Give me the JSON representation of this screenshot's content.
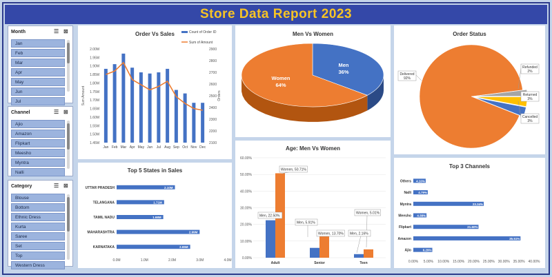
{
  "report_title": "Store Data Report 2023",
  "slicers": {
    "month": {
      "title": "Month",
      "items": [
        "Jan",
        "Feb",
        "Mar",
        "Apr",
        "May",
        "Jun",
        "Jul"
      ]
    },
    "channel": {
      "title": "Channel",
      "items": [
        "Ajio",
        "Amazon",
        "Flipkart",
        "Meesho",
        "Myntra",
        "Nalli"
      ]
    },
    "category": {
      "title": "Category",
      "items": [
        "Blouse",
        "Bottom",
        "Ethnic Dress",
        "Kurta",
        "Saree",
        "Set",
        "Top",
        "Western Dress"
      ]
    }
  },
  "colors": {
    "blue": "#4472c4",
    "orange": "#ed7d31",
    "gray": "#a5a5a5",
    "gold": "#ffc000",
    "title_bg": "#3448a8",
    "title_fg": "#f7c425"
  },
  "panels": {
    "order_vs_sales": "Order Vs Sales",
    "men_vs_women": "Men Vs Women",
    "order_status": "Order Status",
    "top_states": "Top 5 States in Sales",
    "age": "Age: Men Vs Women",
    "top_channels": "Top 3 Channels"
  },
  "chart_data": [
    {
      "type": "bar",
      "title": "Order Vs Sales",
      "categories": [
        "Jan",
        "Feb",
        "Mar",
        "Apr",
        "May",
        "Jun",
        "Jul",
        "Aug",
        "Sep",
        "Oct",
        "Nov",
        "Dec"
      ],
      "series": [
        {
          "name": "Count of Order ID",
          "type": "bar",
          "axis": "right",
          "values": [
            2730,
            2770,
            2860,
            2740,
            2700,
            2690,
            2700,
            2730,
            2550,
            2520,
            2440,
            2440
          ]
        },
        {
          "name": "Sum of Amount",
          "type": "line",
          "axis": "left",
          "values": [
            1.85,
            1.87,
            1.92,
            1.82,
            1.79,
            1.76,
            1.78,
            1.81,
            1.72,
            1.68,
            1.65,
            1.64
          ]
        }
      ],
      "ylabel": "Sum Amount",
      "y2label": "Orders",
      "y_ticks": [
        "1.45M",
        "1.50M",
        "1.55M",
        "1.60M",
        "1.65M",
        "1.70M",
        "1.75M",
        "1.80M",
        "1.85M",
        "1.90M",
        "1.95M",
        "2.00M"
      ],
      "y2_ticks": [
        "2100",
        "2200",
        "2300",
        "2400",
        "2500",
        "2600",
        "2700",
        "2800",
        "2900"
      ],
      "ylim": [
        1.45,
        2.0
      ],
      "y2lim": [
        2100,
        2900
      ],
      "legend": "top-right"
    },
    {
      "type": "pie",
      "title": "Men Vs Women",
      "labels": [
        "Men",
        "Women"
      ],
      "values": [
        36,
        64
      ],
      "value_labels": [
        "36%",
        "64%"
      ]
    },
    {
      "type": "pie",
      "title": "Order Status",
      "labels": [
        "Delivered",
        "Refunded",
        "Returned",
        "Cancelled"
      ],
      "values": [
        92,
        2,
        3,
        3
      ],
      "value_labels": [
        "92%",
        "2%",
        "3%",
        "3%"
      ]
    },
    {
      "type": "bar",
      "title": "Top 5 States in Sales",
      "orientation": "horizontal",
      "categories": [
        "UTTAR PRADESH",
        "TELANGANA",
        "TAMIL NADU",
        "MAHARASHTRA",
        "KARNATAKA"
      ],
      "values": [
        2.1,
        1.71,
        1.68,
        2.99,
        2.65
      ],
      "value_labels": [
        "2.10M",
        "1.71M",
        "1.68M",
        "2.99M",
        "2.65M"
      ],
      "x_ticks": [
        "0.0M",
        "1.0M",
        "2.0M",
        "3.0M",
        "4.0M"
      ],
      "xlim": [
        0,
        4
      ]
    },
    {
      "type": "bar",
      "title": "Age: Men Vs Women",
      "categories": [
        "Adult",
        "Senior",
        "Teen"
      ],
      "series": [
        {
          "name": "Men",
          "values": [
            22.5,
            5.91,
            2.16
          ],
          "labels": [
            "Men, 22.50%",
            "Men, 5.91%",
            "Men, 2.16%"
          ]
        },
        {
          "name": "Women",
          "values": [
            50.71,
            13.7,
            5.01
          ],
          "labels": [
            "Women, 50.71%",
            "Women, 13.70%",
            "Women, 5.01%"
          ]
        }
      ],
      "y_ticks": [
        "0.00%",
        "10.00%",
        "20.00%",
        "30.00%",
        "40.00%",
        "50.00%",
        "60.00%"
      ],
      "ylim": [
        0,
        60
      ]
    },
    {
      "type": "bar",
      "title": "Top 3 Channels",
      "orientation": "horizontal",
      "categories": [
        "Others",
        "Nalli",
        "Myntra",
        "Meesho",
        "Flipkart",
        "Amazon",
        "Ajio"
      ],
      "values": [
        4.1,
        4.79,
        23.34,
        4.38,
        21.6,
        35.51,
        6.29
      ],
      "value_labels": [
        "4.10%",
        "4.79%",
        "23.34%",
        "4.38%",
        "21.60%",
        "35.51%",
        "6.29%"
      ],
      "x_ticks": [
        "0.00%",
        "5.00%",
        "10.00%",
        "15.00%",
        "20.00%",
        "25.00%",
        "30.00%",
        "35.00%",
        "40.00%"
      ],
      "xlim": [
        0,
        40
      ]
    }
  ]
}
